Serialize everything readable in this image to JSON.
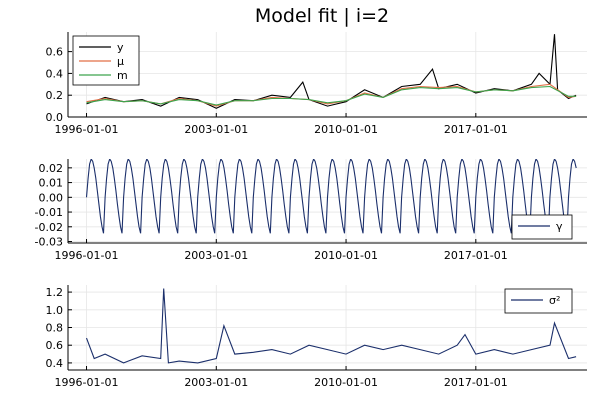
{
  "figure": {
    "title": "Model fit | i=2"
  },
  "chart_data": [
    {
      "type": "line",
      "x_type": "date",
      "xlim": [
        "1995-01-01",
        "2023-01-01"
      ],
      "x_ticks": [
        "1996-01-01",
        "2003-01-01",
        "2010-01-01",
        "2017-01-01"
      ],
      "ylim": [
        0.0,
        0.78
      ],
      "y_ticks": [
        0.0,
        0.2,
        0.4,
        0.6
      ],
      "y_tick_labels": [
        "0.0",
        "0.2",
        "0.4",
        "0.6"
      ],
      "grid": true,
      "legend": "top-left",
      "series": [
        {
          "name": "y",
          "color": "#000000",
          "x": [
            "1996-01-01",
            "1997-01-01",
            "1998-01-01",
            "1999-01-01",
            "2000-01-01",
            "2001-01-01",
            "2002-01-01",
            "2003-01-01",
            "2004-01-01",
            "2005-01-01",
            "2006-01-01",
            "2007-01-01",
            "2007-09-01",
            "2008-01-01",
            "2009-01-01",
            "2010-01-01",
            "2011-01-01",
            "2012-01-01",
            "2013-01-01",
            "2014-01-01",
            "2014-09-01",
            "2015-01-01",
            "2016-01-01",
            "2017-01-01",
            "2018-01-01",
            "2019-01-01",
            "2020-01-01",
            "2020-06-01",
            "2021-01-01",
            "2021-04-01",
            "2021-06-01",
            "2022-01-01",
            "2022-06-01"
          ],
          "values": [
            0.12,
            0.18,
            0.14,
            0.16,
            0.1,
            0.18,
            0.16,
            0.08,
            0.16,
            0.15,
            0.2,
            0.18,
            0.32,
            0.16,
            0.1,
            0.14,
            0.25,
            0.18,
            0.28,
            0.3,
            0.44,
            0.26,
            0.3,
            0.22,
            0.26,
            0.24,
            0.3,
            0.4,
            0.3,
            0.76,
            0.25,
            0.17,
            0.2
          ]
        },
        {
          "name": "μ",
          "color": "#e26f46",
          "x": [
            "1996-01-01",
            "1997-01-01",
            "1998-01-01",
            "1999-01-01",
            "2000-01-01",
            "2001-01-01",
            "2002-01-01",
            "2003-01-01",
            "2004-01-01",
            "2005-01-01",
            "2006-01-01",
            "2007-01-01",
            "2008-01-01",
            "2009-01-01",
            "2010-01-01",
            "2011-01-01",
            "2012-01-01",
            "2013-01-01",
            "2014-01-01",
            "2015-01-01",
            "2016-01-01",
            "2017-01-01",
            "2018-01-01",
            "2019-01-01",
            "2020-01-01",
            "2021-01-01",
            "2022-01-01",
            "2022-06-01"
          ],
          "values": [
            0.14,
            0.17,
            0.14,
            0.15,
            0.12,
            0.17,
            0.15,
            0.1,
            0.15,
            0.15,
            0.18,
            0.17,
            0.16,
            0.12,
            0.15,
            0.22,
            0.18,
            0.26,
            0.28,
            0.27,
            0.28,
            0.23,
            0.25,
            0.24,
            0.28,
            0.3,
            0.18,
            0.19
          ]
        },
        {
          "name": "m",
          "color": "#3da44d",
          "x": [
            "1996-01-01",
            "1997-01-01",
            "1998-01-01",
            "1999-01-01",
            "2000-01-01",
            "2001-01-01",
            "2002-01-01",
            "2003-01-01",
            "2004-01-01",
            "2005-01-01",
            "2006-01-01",
            "2007-01-01",
            "2008-01-01",
            "2009-01-01",
            "2010-01-01",
            "2011-01-01",
            "2012-01-01",
            "2013-01-01",
            "2014-01-01",
            "2015-01-01",
            "2016-01-01",
            "2017-01-01",
            "2018-01-01",
            "2019-01-01",
            "2020-01-01",
            "2021-01-01",
            "2022-01-01",
            "2022-06-01"
          ],
          "values": [
            0.13,
            0.16,
            0.14,
            0.15,
            0.12,
            0.16,
            0.15,
            0.11,
            0.15,
            0.15,
            0.17,
            0.17,
            0.16,
            0.13,
            0.15,
            0.21,
            0.18,
            0.25,
            0.27,
            0.26,
            0.27,
            0.23,
            0.25,
            0.24,
            0.27,
            0.28,
            0.19,
            0.19
          ]
        }
      ]
    },
    {
      "type": "line",
      "x_type": "date",
      "xlim": [
        "1995-01-01",
        "2023-01-01"
      ],
      "x_ticks": [
        "1996-01-01",
        "2003-01-01",
        "2010-01-01",
        "2017-01-01"
      ],
      "ylim": [
        -0.031,
        0.026
      ],
      "y_ticks": [
        -0.03,
        -0.02,
        -0.01,
        0.0,
        0.01,
        0.02
      ],
      "y_tick_labels": [
        "-0.03",
        "-0.02",
        "-0.01",
        "0.00",
        "0.01",
        "0.02"
      ],
      "grid": true,
      "legend": "bottom-right",
      "seasonal": {
        "period_years": 1.0,
        "start": "1996-01-01",
        "end": "2022-07-01",
        "amplitude": 0.026
      },
      "series": [
        {
          "name": "γ",
          "color": "#1b2f6b"
        }
      ]
    },
    {
      "type": "line",
      "x_type": "date",
      "xlim": [
        "1995-01-01",
        "2023-01-01"
      ],
      "x_ticks": [
        "1996-01-01",
        "2003-01-01",
        "2010-01-01",
        "2017-01-01"
      ],
      "ylim": [
        0.32,
        1.28
      ],
      "y_ticks": [
        0.4,
        0.6,
        0.8,
        1.0,
        1.2
      ],
      "y_tick_labels": [
        "0.4",
        "0.6",
        "0.8",
        "1.0",
        "1.2"
      ],
      "grid": true,
      "legend": "top-right",
      "series": [
        {
          "name": "σ²",
          "color": "#1b2f6b",
          "x": [
            "1996-01-01",
            "1996-06-01",
            "1997-01-01",
            "1998-01-01",
            "1999-01-01",
            "2000-01-01",
            "2000-03-01",
            "2000-06-01",
            "2001-01-01",
            "2002-01-01",
            "2003-01-01",
            "2003-06-01",
            "2004-01-01",
            "2005-01-01",
            "2006-01-01",
            "2007-01-01",
            "2008-01-01",
            "2009-01-01",
            "2010-01-01",
            "2011-01-01",
            "2012-01-01",
            "2013-01-01",
            "2014-01-01",
            "2015-01-01",
            "2016-01-01",
            "2016-06-01",
            "2017-01-01",
            "2018-01-01",
            "2019-01-01",
            "2020-01-01",
            "2021-01-01",
            "2021-04-01",
            "2022-01-01",
            "2022-06-01"
          ],
          "values": [
            0.68,
            0.45,
            0.5,
            0.4,
            0.48,
            0.45,
            1.24,
            0.4,
            0.42,
            0.4,
            0.45,
            0.82,
            0.5,
            0.52,
            0.55,
            0.5,
            0.6,
            0.55,
            0.5,
            0.6,
            0.55,
            0.6,
            0.55,
            0.5,
            0.6,
            0.72,
            0.5,
            0.55,
            0.5,
            0.55,
            0.6,
            0.85,
            0.45,
            0.47
          ]
        }
      ]
    }
  ]
}
